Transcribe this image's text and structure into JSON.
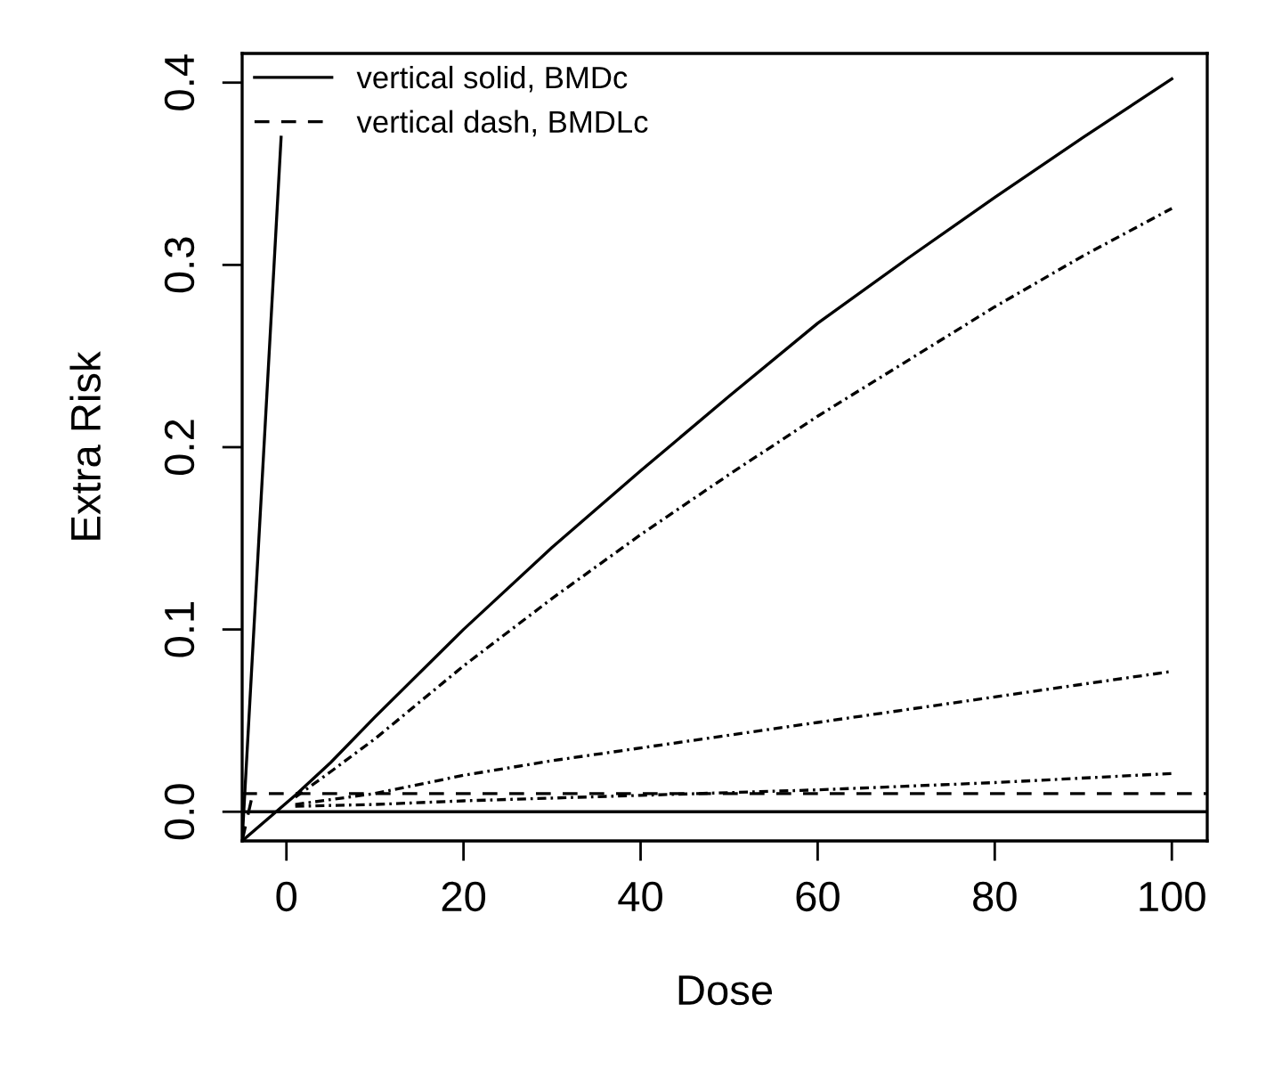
{
  "chart_data": {
    "type": "line",
    "xlabel": "Dose",
    "ylabel": "Extra Risk",
    "xlim": [
      -5,
      104
    ],
    "ylim": [
      -0.016,
      0.416
    ],
    "xticks": [
      0,
      20,
      40,
      60,
      80,
      100
    ],
    "yticks": [
      {
        "value": 0,
        "label": "0.0"
      },
      0.1,
      0.2,
      0.3,
      0.4
    ],
    "grid": false,
    "legend": "top left",
    "marker": "none",
    "series": [
      {
        "color": "#000000",
        "line_style": "solid",
        "x": [
          -5,
          1,
          5,
          10,
          20,
          30,
          40,
          50,
          60,
          70,
          80,
          90,
          100
        ],
        "values": [
          -0.016,
          0.009,
          0.027,
          0.052,
          0.1,
          0.145,
          0.187,
          0.228,
          0.268,
          0.303,
          0.337,
          0.37,
          0.402
        ]
      },
      {
        "color": "#000000",
        "line_style": "dashdot",
        "x": [
          1,
          5,
          10,
          20,
          30,
          40,
          50,
          60,
          70,
          80,
          90,
          100
        ],
        "values": [
          0.008,
          0.022,
          0.04,
          0.08,
          0.117,
          0.152,
          0.185,
          0.217,
          0.247,
          0.277,
          0.305,
          0.331
        ]
      },
      {
        "color": "#000000",
        "line_style": "dashdot",
        "x": [
          1,
          10,
          20,
          30,
          40,
          50,
          60,
          70,
          80,
          90,
          100
        ],
        "values": [
          0.004,
          0.01,
          0.02,
          0.028,
          0.035,
          0.042,
          0.049,
          0.056,
          0.063,
          0.07,
          0.077
        ]
      },
      {
        "color": "#000000",
        "line_style": "dashdot",
        "x": [
          1,
          10,
          20,
          40,
          60,
          80,
          100
        ],
        "values": [
          0.003,
          0.004,
          0.006,
          0.009,
          0.012,
          0.016,
          0.021
        ]
      },
      {
        "name": "vertical solid, BMDc",
        "color": "#000000",
        "line_style": "solid",
        "x": [
          -5,
          -0.6
        ],
        "values": [
          -0.016,
          0.37
        ]
      },
      {
        "name": "vertical dash, BMDLc",
        "color": "#000000",
        "line_style": "dashed",
        "x": [
          -5,
          -3.8
        ],
        "values": [
          -0.016,
          0.01
        ]
      }
    ],
    "ref_lines": [
      {
        "axis": "y",
        "value": 0,
        "color": "#000000",
        "line_style": "solid"
      },
      {
        "axis": "y",
        "value": 0.01,
        "color": "#000000",
        "line_style": "dashed"
      }
    ]
  }
}
